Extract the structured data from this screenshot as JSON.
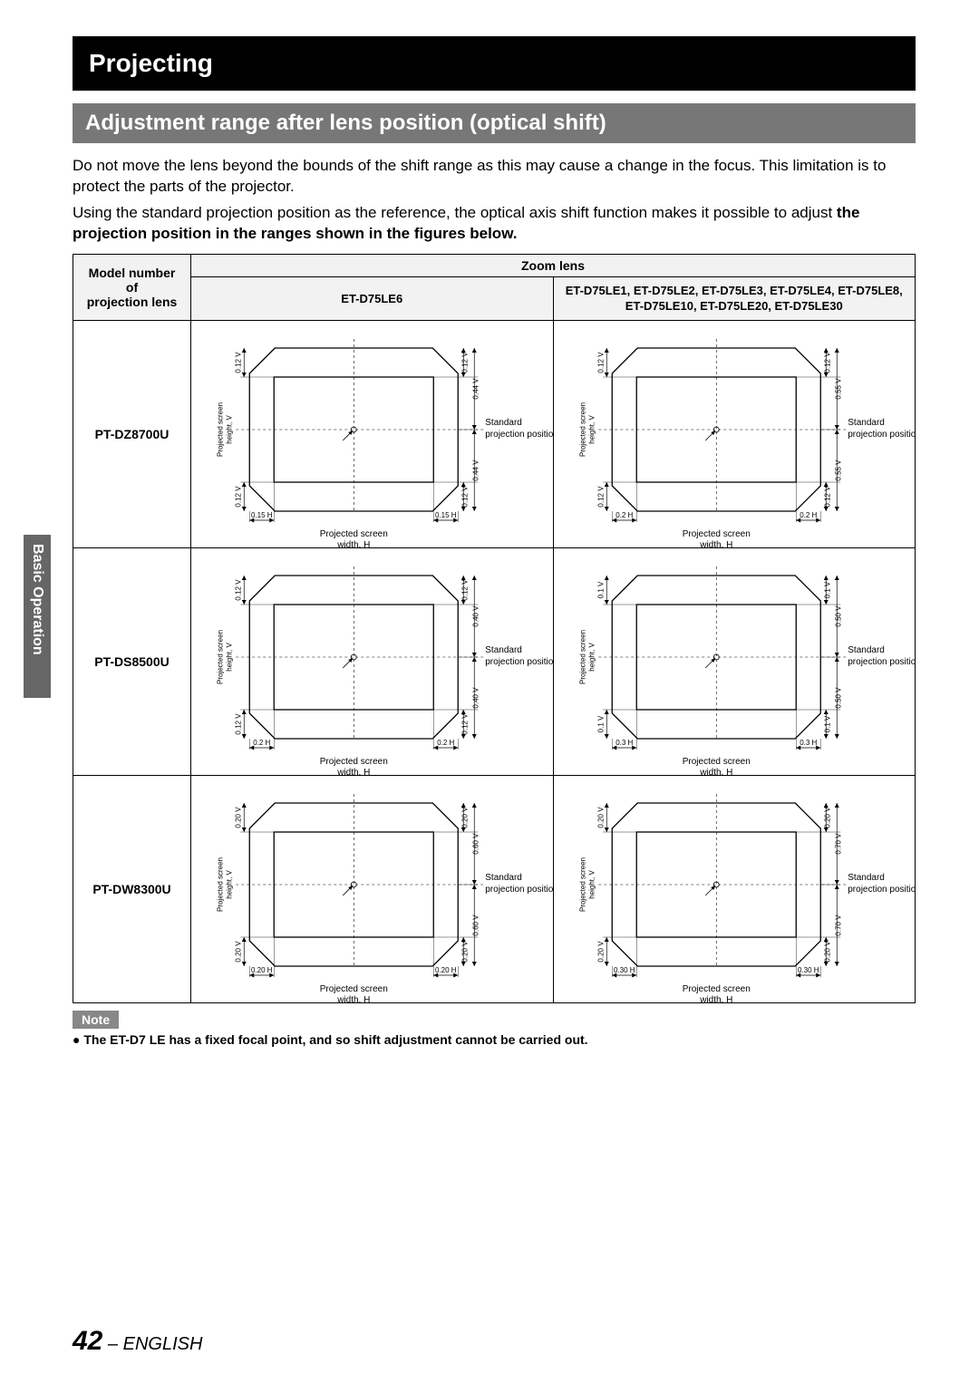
{
  "header": {
    "title": "Projecting"
  },
  "subheader": {
    "title": "Adjustment range after lens position (optical shift)"
  },
  "intro": {
    "p1": "Do not move the lens beyond the bounds of the shift range as this may cause a change in the focus. This limitation is to protect the parts of the projector.",
    "p2a": "Using the standard projection position as the reference, the optical axis shift function makes it possible to adjust ",
    "p2b": "the projection position in the ranges shown in the figures below."
  },
  "side_tab": {
    "label": "Basic Operation"
  },
  "table": {
    "header_model": "Model number\nof\nprojection lens",
    "header_zoom": "Zoom lens",
    "col1_header": "ET-D75LE6",
    "col2_header": "ET-D75LE1, ET-D75LE2, ET-D75LE3, ET-D75LE4, ET-D75LE8, ET-D75LE10, ET-D75LE20, ET-D75LE30",
    "rows": [
      {
        "model": "PT-DZ8700U",
        "left": {
          "v_in": "0.12 V",
          "v_out": "0.44 V",
          "h": "0.15 H"
        },
        "right": {
          "v_in": "0.12 V",
          "v_out": "0.55 V",
          "h": "0.2 H"
        }
      },
      {
        "model": "PT-DS8500U",
        "left": {
          "v_in": "0.12 V",
          "v_out": "0.40 V",
          "h": "0.2 H"
        },
        "right": {
          "v_in": "0.1 V",
          "v_out": "0.50 V",
          "h": "0.3 H"
        }
      },
      {
        "model": "PT-DW8300U",
        "left": {
          "v_in": "0.20 V",
          "v_out": "0.60 V",
          "h": "0.20 H"
        },
        "right": {
          "v_in": "0.20 V",
          "v_out": "0.70 V",
          "h": "0.30 H"
        }
      }
    ]
  },
  "diagram_labels": {
    "y_label": "Projected screen\nheight, V",
    "x_label": "Projected screen\nwidth, H",
    "std1": "Standard",
    "std2": "projection position"
  },
  "note": {
    "label": "Note",
    "bullet": "●",
    "text": "The ET-D7  LE   has a fixed focal point, and so shift adjustment cannot be carried out."
  },
  "footer": {
    "page": "42",
    "lang": " – ENGLISH"
  },
  "colors": {
    "bg": "#ffffff",
    "header_bg": "#000000",
    "sub_bg": "#777777",
    "tab_bg": "#666666",
    "cell_bg": "#f2f2f2",
    "line": "#000000"
  }
}
